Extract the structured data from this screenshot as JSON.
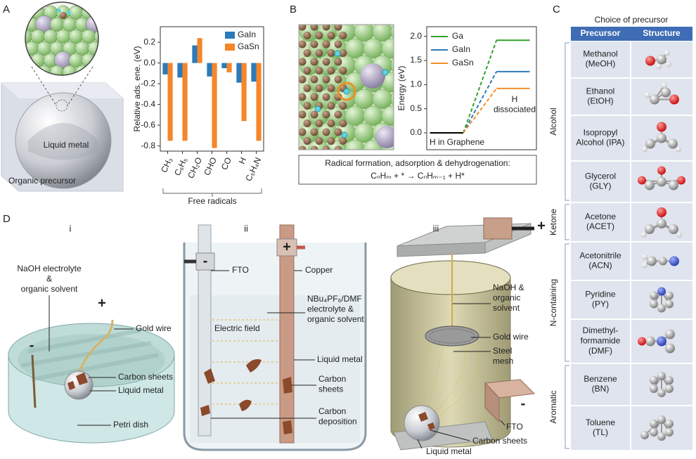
{
  "panel_labels": [
    "A",
    "B",
    "C",
    "D"
  ],
  "panel_a": {
    "illustration_labels": [
      "Liquid metal",
      "Organic precursor"
    ],
    "chart_data": {
      "type": "bar",
      "y_label": "Relative ads. ene. (eV)",
      "x_label": "Free radicals",
      "categories": [
        "CH₃",
        "C₆H₅",
        "CH₂O",
        "CHO",
        "CO",
        "H",
        "C₅H₄N"
      ],
      "series": [
        {
          "name": "GaIn",
          "color": "#2b7bba",
          "values": [
            -0.11,
            -0.14,
            0.17,
            -0.13,
            -0.05,
            -0.19,
            -0.18
          ]
        },
        {
          "name": "GaSn",
          "color": "#f5862a",
          "values": [
            -0.75,
            -0.75,
            0.24,
            -0.82,
            -0.09,
            -0.56,
            -0.75
          ]
        }
      ],
      "ylim": [
        -0.85,
        0.35
      ],
      "yticks": [
        -0.8,
        -0.6,
        -0.4,
        -0.2,
        {
          "value": 0,
          "label": "0.0"
        },
        0.2
      ],
      "legend": "upper right"
    }
  },
  "panel_b": {
    "chart_data": {
      "type": "line",
      "y_label": "Energy (eV)",
      "x": [
        0,
        1,
        2,
        3
      ],
      "xlim": [
        -0.1,
        3.2
      ],
      "start_color": "#000000",
      "series": [
        {
          "name": "Ga",
          "color": "#33a02c",
          "values": [
            0,
            0,
            1.92,
            1.92
          ]
        },
        {
          "name": "GaIn",
          "color": "#2f7bb6",
          "values": [
            0,
            0,
            1.27,
            1.27
          ]
        },
        {
          "name": "GaSn",
          "color": "#f28e2b",
          "values": [
            0,
            0,
            0.92,
            0.92
          ]
        }
      ],
      "ylim": [
        -0.35,
        2.2
      ],
      "yticks": [
        {
          "value": 0,
          "label": "0.0"
        },
        0.5,
        {
          "value": 1,
          "label": "1.0"
        },
        1.5,
        {
          "value": 2,
          "label": "2.0"
        }
      ],
      "legend": "upper left",
      "annotations": [
        "H in Graphene",
        "H\ndissociated"
      ]
    },
    "reaction": {
      "title": "Radical formation, adsorption & dehydrogenation:",
      "equation": "CₙHₘ + * → CₙHₘ₋₁ + H*"
    }
  },
  "panel_c": {
    "title": "Choice of precursor",
    "headers": [
      "Precursor",
      "Structure"
    ],
    "groups": [
      {
        "name": "Alcohol",
        "rows": [
          "Methanol\n(MeOH)",
          "Ethanol\n(EtOH)",
          "Isopropyl\nAlcohol (IPA)",
          "Glycerol\n(GLY)"
        ]
      },
      {
        "name": "Ketone",
        "rows": [
          "Acetone\n(ACET)"
        ]
      },
      {
        "name": "N-containing",
        "rows": [
          "Acetonitrile\n(ACN)",
          "Pyridine\n(PY)",
          "Dimethyl-\nformamide\n(DMF)"
        ]
      },
      {
        "name": "Aromatic",
        "rows": [
          "Benzene\n(BN)",
          "Toluene\n(TL)"
        ]
      }
    ]
  },
  "panel_d": {
    "subpanels": [
      {
        "label": "i",
        "labels": [
          "NaOH electrolyte\n&\norganic solvent",
          "+",
          "-",
          "Gold wire",
          "Carbon sheets",
          "Liquid metal",
          "Petri dish"
        ]
      },
      {
        "label": "ii",
        "labels": [
          "-",
          "+",
          "FTO",
          "Copper",
          "NBu₄PF₆/DMF\nelectrolyte &\norganic solvent",
          "Electric field",
          "Liquid metal",
          "Carbon\nsheets",
          "Carbon\ndeposition"
        ]
      },
      {
        "label": "iii",
        "labels": [
          "+",
          "NaOH &\norganic\nsolvent",
          "Gold wire",
          "Steel\nmesh",
          "-",
          "FTO",
          "Carbon sheets",
          "Liquid metal"
        ]
      }
    ]
  }
}
